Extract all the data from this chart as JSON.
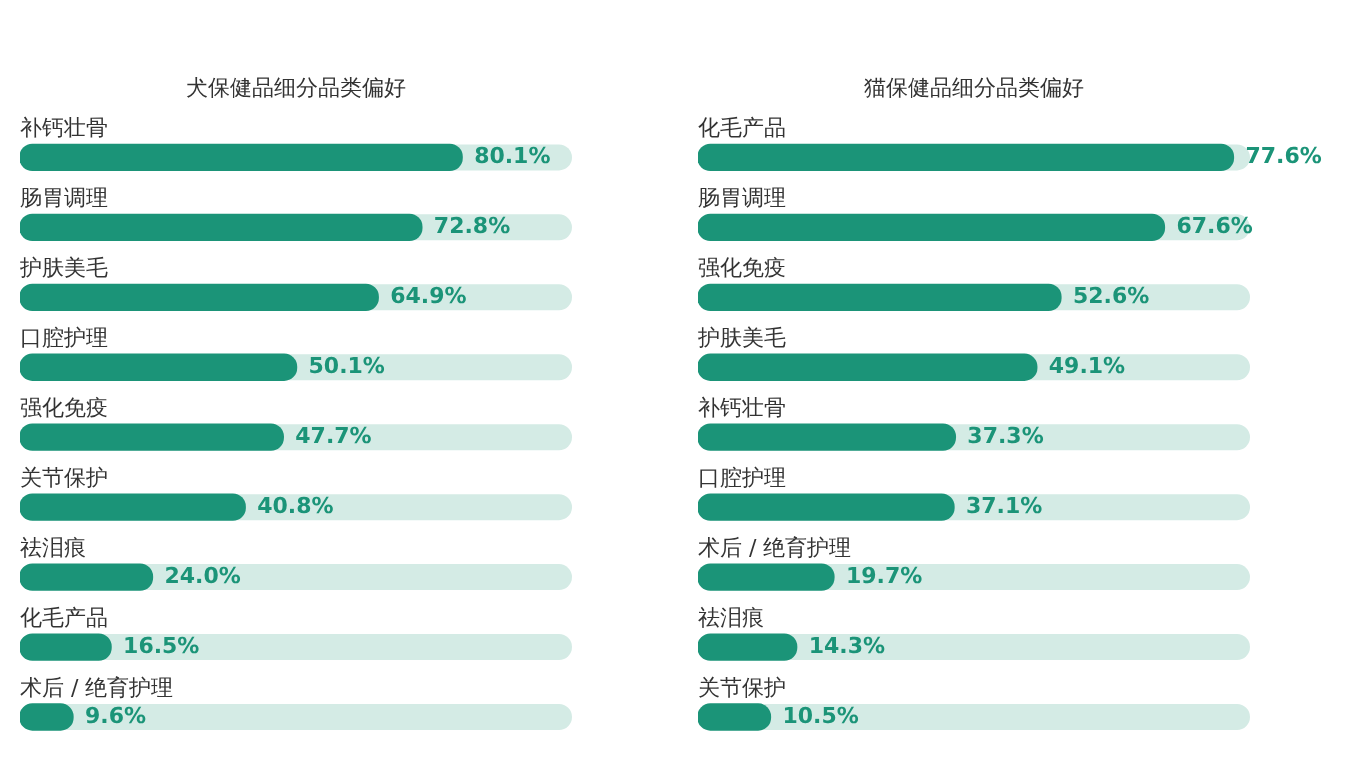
{
  "chart_data": [
    {
      "type": "bar",
      "orientation": "horizontal",
      "title": "犬保健品细分品类偏好",
      "categories": [
        "补钙壮骨",
        "肠胃调理",
        "护肤美毛",
        "口腔护理",
        "强化免疫",
        "关节保护",
        "祛泪痕",
        "化毛产品",
        "术后 / 绝育护理"
      ],
      "values": [
        80.1,
        72.8,
        64.9,
        50.1,
        47.7,
        40.8,
        24.0,
        16.5,
        9.6
      ],
      "value_labels": [
        "80.1%",
        "72.8%",
        "64.9%",
        "50.1%",
        "47.7%",
        "40.8%",
        "24.0%",
        "16.5%",
        "9.6%"
      ],
      "color": "#1b9478",
      "tick_labels": "y",
      "legend": false
    },
    {
      "type": "bar",
      "orientation": "horizontal",
      "title": "猫保健品细分品类偏好",
      "categories": [
        "化毛产品",
        "肠胃调理",
        "强化免疫",
        "护肤美毛",
        "补钙壮骨",
        "口腔护理",
        "术后 / 绝育护理",
        "祛泪痕",
        "关节保护"
      ],
      "values": [
        77.6,
        67.6,
        52.6,
        49.1,
        37.3,
        37.1,
        19.7,
        14.3,
        10.5
      ],
      "value_labels": [
        "77.6%",
        "67.6%",
        "52.6%",
        "49.1%",
        "37.3%",
        "37.1%",
        "19.7%",
        "14.3%",
        "10.5%"
      ],
      "color": "#1b9478",
      "tick_labels": "y",
      "legend": false
    }
  ]
}
